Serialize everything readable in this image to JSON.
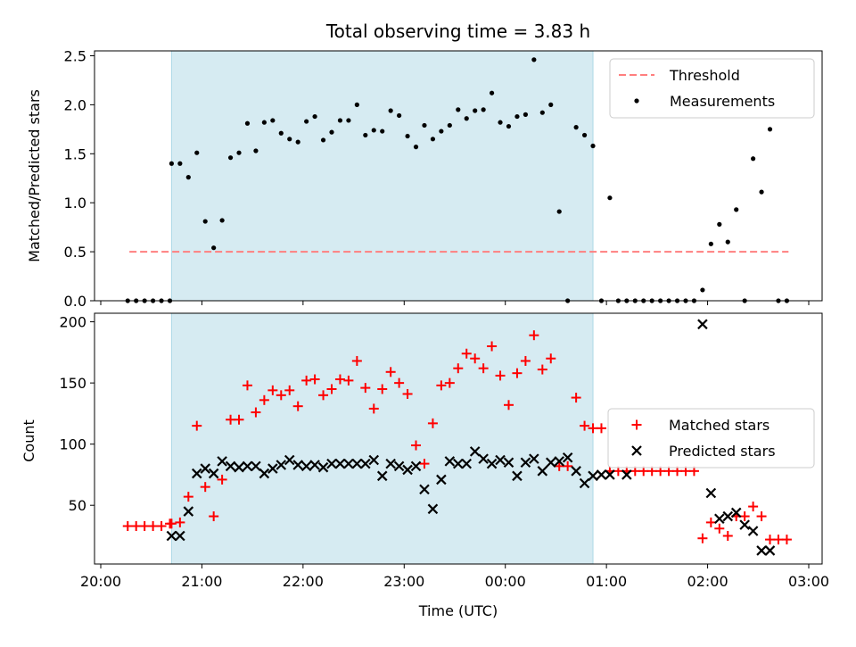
{
  "chart_data": [
    {
      "type": "scatter",
      "title": "Total observing time = 3.83 h",
      "ylabel": "Matched/Predicted stars",
      "xlabel": "",
      "xlim": [
        "20:00",
        "03:00"
      ],
      "ylim": [
        0,
        2.55
      ],
      "yticks": [
        0.0,
        0.5,
        1.0,
        1.5,
        2.0,
        2.5
      ],
      "ytick_labels": [
        "0.0",
        "0.5",
        "1.0",
        "1.5",
        "2.0",
        "2.5"
      ],
      "legend_position": "top-right",
      "shaded_interval": [
        "20:42",
        "00:52"
      ],
      "series": [
        {
          "name": "Threshold",
          "kind": "dashed-line",
          "color": "#ff7f7f",
          "x": [
            "20:17",
            "02:48"
          ],
          "y": [
            0.5,
            0.5
          ]
        },
        {
          "name": "Measurements",
          "kind": "points",
          "color": "#000000",
          "x": [
            "20:16",
            "20:21",
            "20:26",
            "20:31",
            "20:36",
            "20:41",
            "20:42",
            "20:47",
            "20:52",
            "20:57",
            "21:02",
            "21:07",
            "21:12",
            "21:17",
            "21:22",
            "21:27",
            "21:32",
            "21:37",
            "21:42",
            "21:47",
            "21:52",
            "21:57",
            "22:02",
            "22:07",
            "22:12",
            "22:17",
            "22:22",
            "22:27",
            "22:32",
            "22:37",
            "22:42",
            "22:47",
            "22:52",
            "22:57",
            "23:02",
            "23:07",
            "23:12",
            "23:17",
            "23:22",
            "23:27",
            "23:32",
            "23:37",
            "23:42",
            "23:47",
            "23:52",
            "23:57",
            "00:02",
            "00:07",
            "00:12",
            "00:17",
            "00:22",
            "00:27",
            "00:32",
            "00:37",
            "00:42",
            "00:47",
            "00:52",
            "00:57",
            "01:02",
            "01:07",
            "01:12",
            "01:17",
            "01:22",
            "01:27",
            "01:32",
            "01:37",
            "01:42",
            "01:47",
            "01:52",
            "01:57",
            "02:02",
            "02:07",
            "02:12",
            "02:17",
            "02:22",
            "02:27",
            "02:32",
            "02:37",
            "02:42",
            "02:47"
          ],
          "y": [
            0,
            0,
            0,
            0,
            0,
            0,
            1.4,
            1.4,
            1.26,
            1.51,
            0.81,
            0.54,
            0.82,
            1.46,
            1.51,
            1.81,
            1.53,
            1.82,
            1.84,
            1.71,
            1.65,
            1.62,
            1.83,
            1.88,
            1.64,
            1.72,
            1.84,
            1.84,
            2.0,
            1.69,
            1.74,
            1.73,
            1.94,
            1.89,
            1.68,
            1.57,
            1.79,
            1.65,
            1.73,
            1.79,
            1.95,
            1.86,
            1.94,
            1.95,
            2.12,
            1.82,
            1.78,
            1.88,
            1.9,
            2.46,
            1.92,
            2.0,
            0.91,
            0.0,
            1.77,
            1.69,
            1.58,
            0.0,
            1.05,
            0.0,
            0.0,
            0.0,
            0.0,
            0.0,
            0.0,
            0.0,
            0.0,
            0.0,
            0.0,
            0.11,
            0.58,
            0.78,
            0.6,
            0.93,
            0.0,
            1.45,
            1.11,
            1.75,
            0.0,
            0.0
          ]
        }
      ]
    },
    {
      "type": "scatter",
      "title": "",
      "xlabel": "Time (UTC)",
      "ylabel": "Count",
      "xlim": [
        "20:00",
        "03:00"
      ],
      "ylim": [
        2,
        207
      ],
      "xticks": [
        "20:00",
        "21:00",
        "22:00",
        "23:00",
        "00:00",
        "01:00",
        "02:00",
        "03:00"
      ],
      "yticks": [
        50,
        100,
        150,
        200
      ],
      "ytick_labels": [
        "50",
        "100",
        "150",
        "200"
      ],
      "legend_position": "center-right",
      "shaded_interval": [
        "20:42",
        "00:52"
      ],
      "series": [
        {
          "name": "Matched stars",
          "marker": "plus",
          "color": "#ff0000",
          "x": [
            "20:16",
            "20:21",
            "20:26",
            "20:31",
            "20:36",
            "20:41",
            "20:42",
            "20:47",
            "20:52",
            "20:57",
            "21:02",
            "21:07",
            "21:12",
            "21:17",
            "21:22",
            "21:27",
            "21:32",
            "21:37",
            "21:42",
            "21:47",
            "21:52",
            "21:57",
            "22:02",
            "22:07",
            "22:12",
            "22:17",
            "22:22",
            "22:27",
            "22:32",
            "22:37",
            "22:42",
            "22:47",
            "22:52",
            "22:57",
            "23:02",
            "23:07",
            "23:12",
            "23:17",
            "23:22",
            "23:27",
            "23:32",
            "23:37",
            "23:42",
            "23:47",
            "23:52",
            "23:57",
            "00:02",
            "00:07",
            "00:12",
            "00:17",
            "00:22",
            "00:27",
            "00:32",
            "00:37",
            "00:42",
            "00:47",
            "00:52",
            "00:57",
            "01:02",
            "01:07",
            "01:12",
            "01:17",
            "01:22",
            "01:27",
            "01:32",
            "01:37",
            "01:42",
            "01:47",
            "01:52",
            "01:57",
            "02:02",
            "02:07",
            "02:12",
            "02:17",
            "02:22",
            "02:27",
            "02:32",
            "02:37",
            "02:42",
            "02:47"
          ],
          "y": [
            33,
            33,
            33,
            33,
            33,
            35,
            35,
            36,
            57,
            115,
            65,
            41,
            71,
            120,
            120,
            148,
            126,
            136,
            144,
            140,
            144,
            131,
            152,
            153,
            140,
            145,
            153,
            152,
            168,
            146,
            129,
            145,
            159,
            150,
            141,
            99,
            84,
            117,
            148,
            150,
            162,
            174,
            170,
            162,
            180,
            156,
            132,
            158,
            168,
            189,
            161,
            170,
            82,
            82,
            138,
            115,
            113,
            113,
            78,
            78,
            78,
            78,
            78,
            78,
            78,
            78,
            78,
            78,
            78,
            23,
            36,
            31,
            25,
            41,
            41,
            49,
            41,
            22,
            22,
            22
          ],
          "values_note_hidden": ""
        },
        {
          "name": "Predicted stars",
          "marker": "x",
          "color": "#000000",
          "x": [
            "20:42",
            "20:47",
            "20:52",
            "20:57",
            "21:02",
            "21:07",
            "21:12",
            "21:17",
            "21:22",
            "21:27",
            "21:32",
            "21:37",
            "21:42",
            "21:47",
            "21:52",
            "21:57",
            "22:02",
            "22:07",
            "22:12",
            "22:17",
            "22:22",
            "22:27",
            "22:32",
            "22:37",
            "22:42",
            "22:47",
            "22:52",
            "22:57",
            "23:02",
            "23:07",
            "23:12",
            "23:17",
            "23:22",
            "23:27",
            "23:32",
            "23:37",
            "23:42",
            "23:47",
            "23:52",
            "23:57",
            "00:02",
            "00:07",
            "00:12",
            "00:17",
            "00:22",
            "00:27",
            "00:32",
            "00:37",
            "00:42",
            "00:47",
            "00:52",
            "00:57",
            "01:02",
            "01:12",
            "01:57",
            "02:02",
            "02:07",
            "02:12",
            "02:17",
            "02:22",
            "02:27",
            "02:32",
            "02:37"
          ],
          "y": [
            25,
            25,
            45,
            76,
            80,
            76,
            86,
            82,
            81,
            82,
            82,
            76,
            80,
            83,
            87,
            83,
            82,
            83,
            81,
            84,
            84,
            84,
            84,
            84,
            87,
            74,
            84,
            82,
            79,
            82,
            63,
            47,
            71,
            86,
            84,
            84,
            94,
            88,
            84,
            87,
            85,
            74,
            85,
            88,
            78,
            85,
            86,
            89,
            78,
            68,
            74,
            75,
            75,
            75,
            198,
            60,
            39,
            41,
            44,
            34,
            29,
            13,
            13
          ]
        }
      ]
    }
  ]
}
